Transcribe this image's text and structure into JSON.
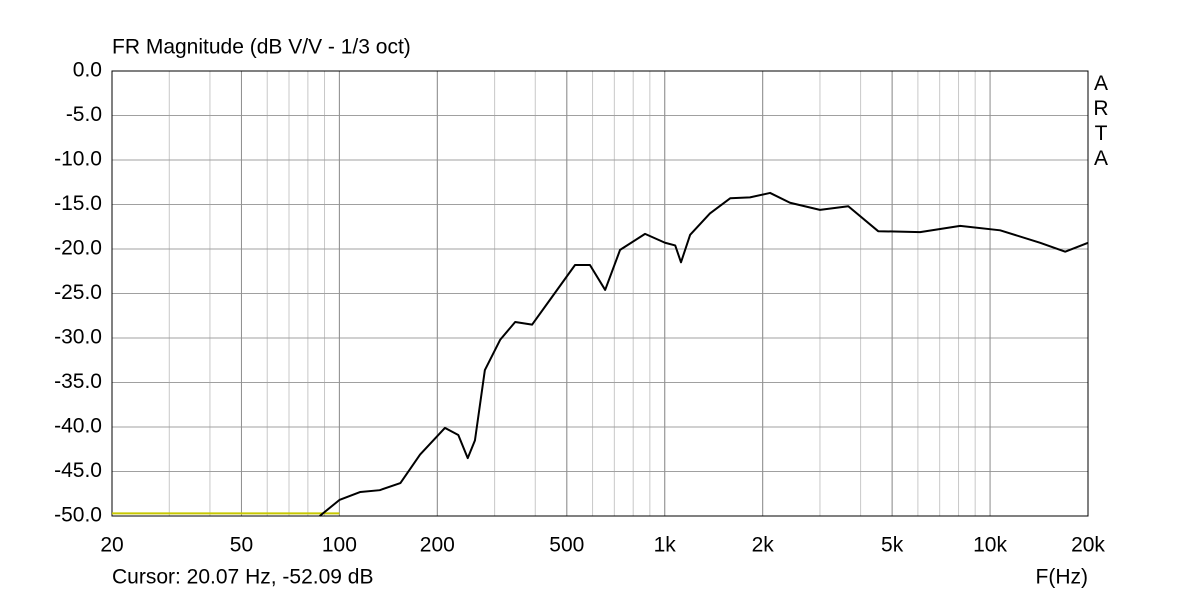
{
  "chart_data": {
    "type": "line",
    "title": "FR Magnitude (dB V/V - 1/3 oct)",
    "watermark": "ARTA",
    "cursor_text": "Cursor: 20.07 Hz, -52.09 dB",
    "x_label": "F(Hz)",
    "x_log": true,
    "grid": true,
    "xlim": [
      20,
      20000
    ],
    "ylim": [
      -50,
      0
    ],
    "xticks": [
      20,
      50,
      100,
      200,
      500,
      {
        "value": 1000,
        "label": "1k"
      },
      {
        "value": 2000,
        "label": "2k"
      },
      {
        "value": 5000,
        "label": "5k"
      },
      {
        "value": 10000,
        "label": "10k"
      },
      {
        "value": 20000,
        "label": "20k"
      }
    ],
    "yticks": [
      {
        "value": 0,
        "label": "0.0"
      },
      {
        "value": -5,
        "label": "-5.0"
      },
      {
        "value": -10,
        "label": "-10.0"
      },
      {
        "value": -15,
        "label": "-15.0"
      },
      {
        "value": -20,
        "label": "-20.0"
      },
      {
        "value": -25,
        "label": "-25.0"
      },
      {
        "value": -30,
        "label": "-30.0"
      },
      {
        "value": -35,
        "label": "-35.0"
      },
      {
        "value": -40,
        "label": "-40.0"
      },
      {
        "value": -45,
        "label": "-45.0"
      },
      {
        "value": -50,
        "label": "-50.0"
      }
    ],
    "series": [
      {
        "color": "#c8c800",
        "x": [
          20,
          100
        ],
        "values": [
          -49.7,
          -49.7
        ]
      },
      {
        "color": "#000000",
        "x": [
          87,
          100,
          116,
          133,
          154,
          177,
          211,
          232,
          248,
          261,
          280,
          312,
          347,
          391,
          444,
          530,
          589,
          656,
          729,
          870,
          1002,
          1077,
          1122,
          1197,
          1377,
          1589,
          1828,
          2108,
          2427,
          3000,
          3666,
          4530,
          6096,
          8093,
          10740,
          14260,
          17020,
          20000
        ],
        "values": [
          -50,
          -48.2,
          -47.3,
          -47.1,
          -46.3,
          -43.1,
          -40.1,
          -40.9,
          -43.5,
          -41.5,
          -33.6,
          -30.2,
          -28.2,
          -28.5,
          -25.7,
          -21.8,
          -21.8,
          -24.6,
          -20.1,
          -18.3,
          -19.3,
          -19.6,
          -21.5,
          -18.4,
          -16.0,
          -14.3,
          -14.2,
          -13.7,
          -14.8,
          -15.6,
          -15.2,
          -18.0,
          -18.1,
          -17.4,
          -17.9,
          -19.3,
          -20.3,
          -19.3
        ]
      }
    ]
  }
}
